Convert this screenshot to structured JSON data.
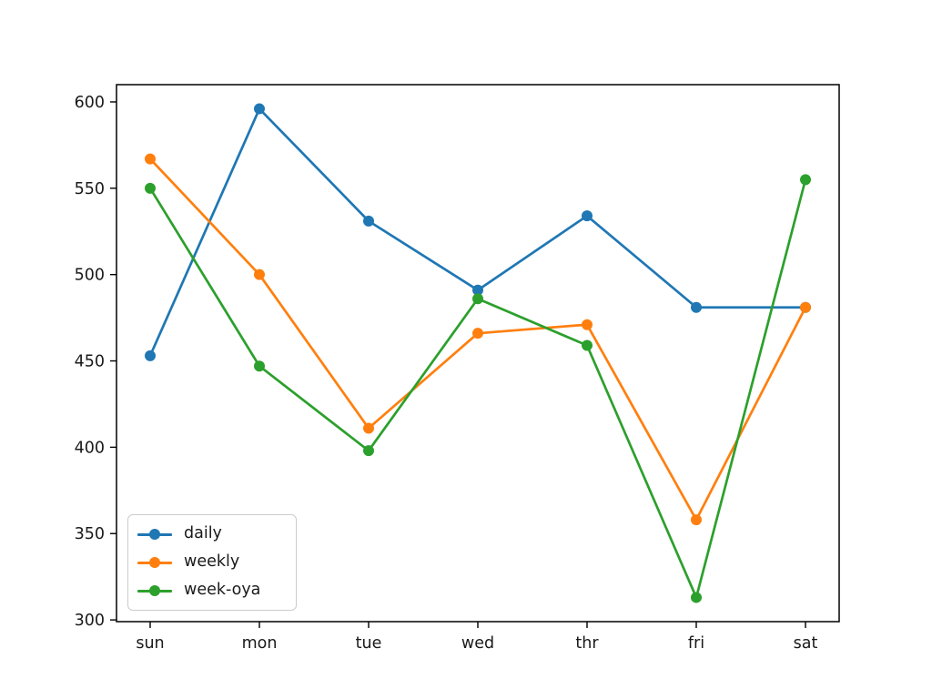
{
  "figure": {
    "background": "#ffffff",
    "axis_color": "#000000",
    "legend_border_color": "#cccccc"
  },
  "chart_data": {
    "type": "line",
    "title": "",
    "xlabel": "",
    "ylabel": "",
    "categories": [
      "sun",
      "mon",
      "tue",
      "wed",
      "thr",
      "fri",
      "sat"
    ],
    "series": [
      {
        "name": "daily",
        "color": "#1f77b4",
        "values": [
          453,
          596,
          531,
          491,
          534,
          481,
          481
        ]
      },
      {
        "name": "weekly",
        "color": "#ff7f0e",
        "values": [
          567,
          500,
          411,
          466,
          471,
          358,
          481
        ]
      },
      {
        "name": "week-oya",
        "color": "#2ca02c",
        "values": [
          550,
          447,
          398,
          486,
          459,
          313,
          555
        ]
      }
    ],
    "yticks": [
      300,
      350,
      400,
      450,
      500,
      550,
      600
    ],
    "ylim": [
      299,
      610
    ],
    "grid": false,
    "legend_position": "lower left",
    "marker": "circle"
  }
}
